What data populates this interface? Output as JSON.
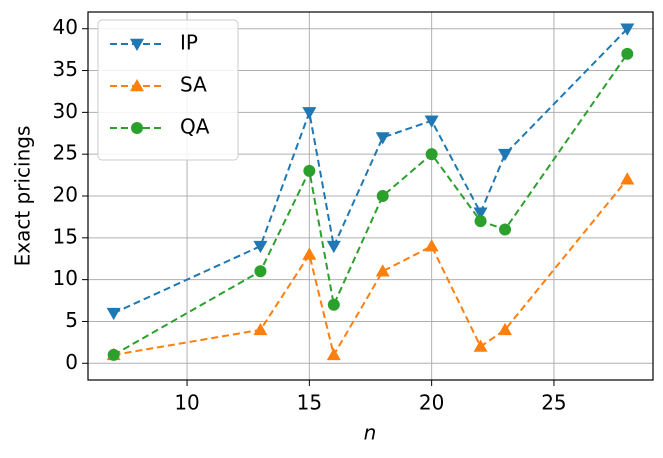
{
  "chart_data": {
    "type": "line",
    "x_label": "n",
    "y_label": "Exact pricings",
    "x": [
      7,
      13,
      15,
      16,
      18,
      20,
      22,
      23,
      28
    ],
    "series": [
      {
        "name": "IP",
        "color": "#1f77b4",
        "marker": "triangle-down",
        "values": [
          6,
          14,
          30,
          14,
          27,
          29,
          18,
          25,
          40
        ]
      },
      {
        "name": "SA",
        "color": "#ff7f0e",
        "marker": "triangle-up",
        "values": [
          1,
          4,
          13,
          1,
          11,
          14,
          2,
          4,
          22
        ]
      },
      {
        "name": "QA",
        "color": "#2ca02c",
        "marker": "circle",
        "values": [
          1,
          11,
          23,
          7,
          20,
          25,
          17,
          16,
          37
        ]
      }
    ],
    "xlim": [
      5.95,
      29.05
    ],
    "xticks": [
      10,
      15,
      20,
      25
    ],
    "ylim": [
      -2,
      42
    ],
    "yticks": [
      0,
      5,
      10,
      15,
      20,
      25,
      30,
      35,
      40
    ],
    "grid": true,
    "legend": "upper-left",
    "line_style": "dashed"
  }
}
